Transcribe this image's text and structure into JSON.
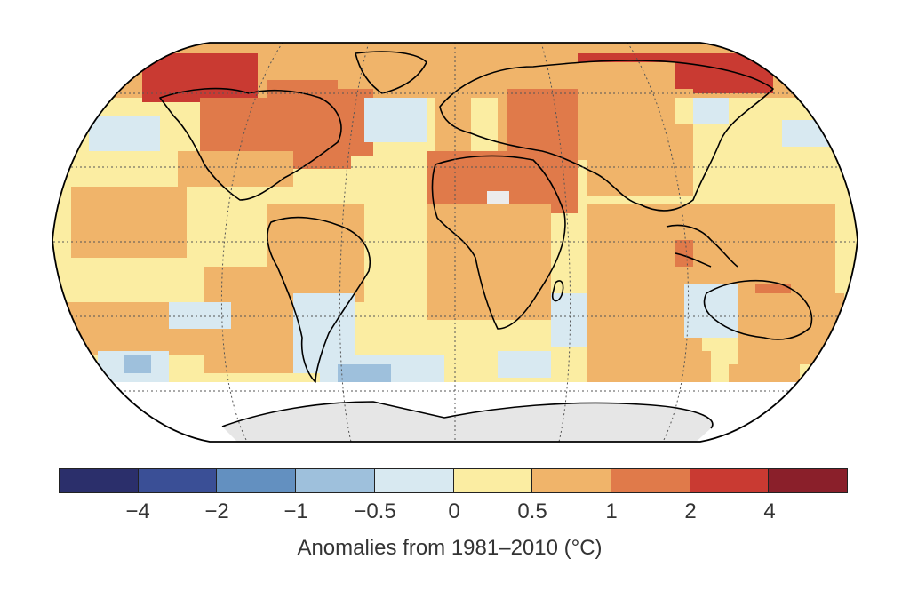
{
  "map": {
    "projection": "Robinson",
    "grid": "dotted graticule",
    "missing_color": "#e6e6e6",
    "region_anomalies": [
      {
        "region": "Arctic / northern Canada & Greenland coast",
        "bin": "2 to 4"
      },
      {
        "region": "Northern Siberia",
        "bin": "2 to 4"
      },
      {
        "region": "Eastern North America",
        "bin": "1 to 2"
      },
      {
        "region": "Western Russia / Middle East",
        "bin": "1 to 2"
      },
      {
        "region": "North Atlantic south of Greenland",
        "bin": "-0.5 to 0"
      },
      {
        "region": "Southern Ocean sectors",
        "bin": "-1 to -0.5"
      },
      {
        "region": "Tropical oceans",
        "bin": "0 to 0.5"
      },
      {
        "region": "Antarctica",
        "bin": "no data"
      }
    ]
  },
  "legend": {
    "title": "Anomalies from 1981–2010 (°C)",
    "bins": [
      {
        "color": "#2b2f6b"
      },
      {
        "color": "#3a4f96"
      },
      {
        "color": "#6390c0"
      },
      {
        "color": "#9ec0dc"
      },
      {
        "color": "#d8e9f1"
      },
      {
        "color": "#fbeda2"
      },
      {
        "color": "#f0b46a"
      },
      {
        "color": "#e07a4a"
      },
      {
        "color": "#c93a32"
      },
      {
        "color": "#8a1f2a"
      }
    ],
    "ticks": [
      "−4",
      "−2",
      "−1",
      "−0.5",
      "0",
      "0.5",
      "1",
      "2",
      "4"
    ]
  }
}
